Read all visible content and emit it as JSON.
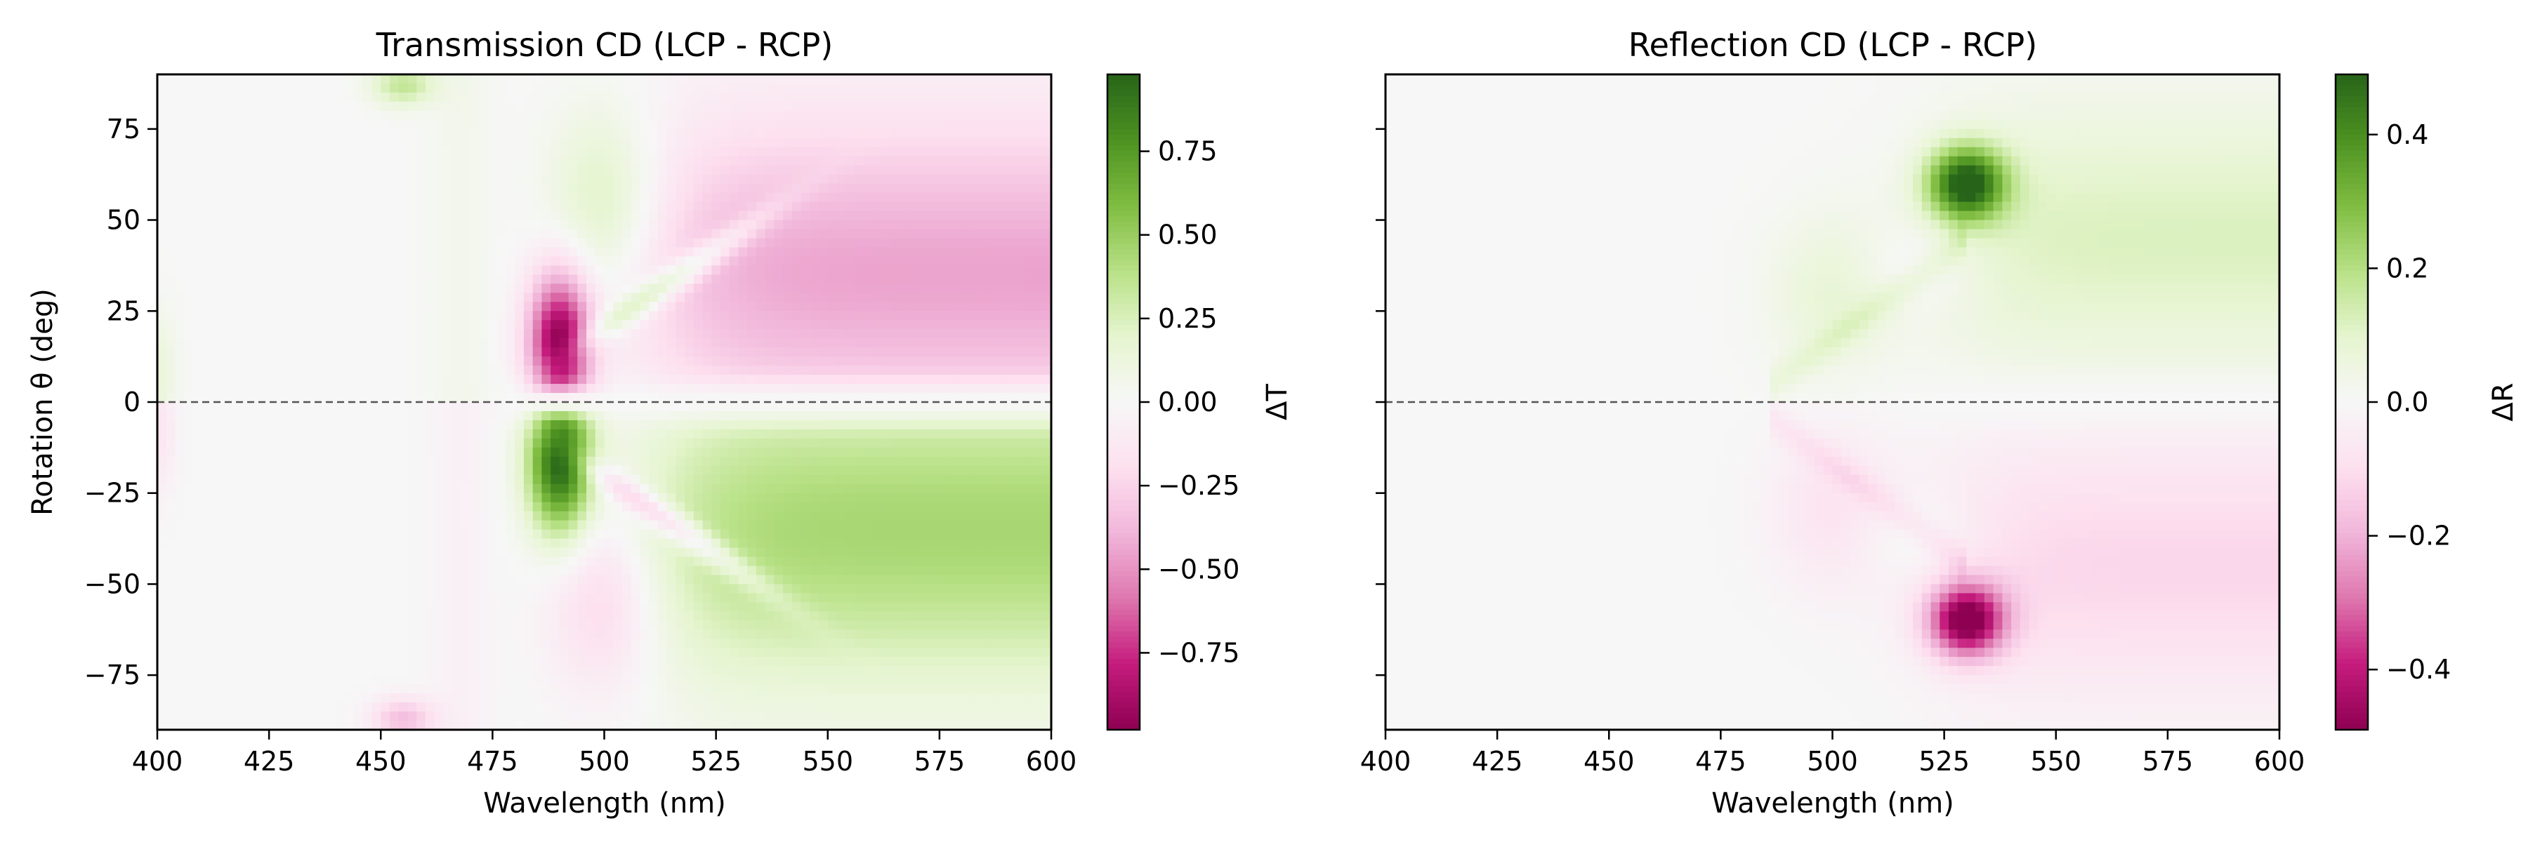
{
  "chart_data": [
    {
      "type": "heatmap",
      "title": "Transmission CD (LCP - RCP)",
      "xlabel": "Wavelength (nm)",
      "ylabel": "Rotation θ (deg)",
      "xlim": [
        400,
        600
      ],
      "ylim": [
        -90,
        90
      ],
      "x_ticks": [
        400,
        425,
        450,
        475,
        500,
        525,
        550,
        575,
        600
      ],
      "y_ticks": [
        75,
        50,
        25,
        0,
        -25,
        -50,
        -75
      ],
      "colorbar_label": "ΔT",
      "colorbar_range": [
        -0.98,
        0.98
      ],
      "colorbar_ticks": [
        "0.75",
        "0.50",
        "0.25",
        "0.00",
        "−0.25",
        "−0.50",
        "−0.75"
      ],
      "colormap": "PiYG",
      "reference_line_y": 0,
      "features": [
        {
          "wavelength": 490,
          "theta": 16,
          "value": -0.98
        },
        {
          "wavelength": 490,
          "theta": -16,
          "value": 0.98
        },
        {
          "wavelength": 590,
          "theta": 35,
          "value": -0.45
        },
        {
          "wavelength": 590,
          "theta": -35,
          "value": 0.45
        },
        {
          "wavelength": 455,
          "theta": 87,
          "value": 0.35
        },
        {
          "wavelength": 455,
          "theta": -87,
          "value": -0.35
        }
      ]
    },
    {
      "type": "heatmap",
      "title": "Reflection CD (LCP - RCP)",
      "xlabel": "Wavelength (nm)",
      "xlim": [
        400,
        600
      ],
      "ylim": [
        -90,
        90
      ],
      "x_ticks": [
        400,
        425,
        450,
        475,
        500,
        525,
        550,
        575,
        600
      ],
      "colorbar_label": "ΔR",
      "colorbar_range": [
        -0.49,
        0.49
      ],
      "colorbar_ticks": [
        "0.4",
        "0.2",
        "0.0",
        "−0.2",
        "−0.4"
      ],
      "colormap": "PiYG",
      "reference_line_y": 0,
      "features": [
        {
          "wavelength": 530,
          "theta": 60,
          "value": 0.49
        },
        {
          "wavelength": 530,
          "theta": -60,
          "value": -0.49
        },
        {
          "wavelength": 580,
          "theta": 45,
          "value": 0.12
        },
        {
          "wavelength": 580,
          "theta": -45,
          "value": -0.1
        }
      ]
    }
  ]
}
